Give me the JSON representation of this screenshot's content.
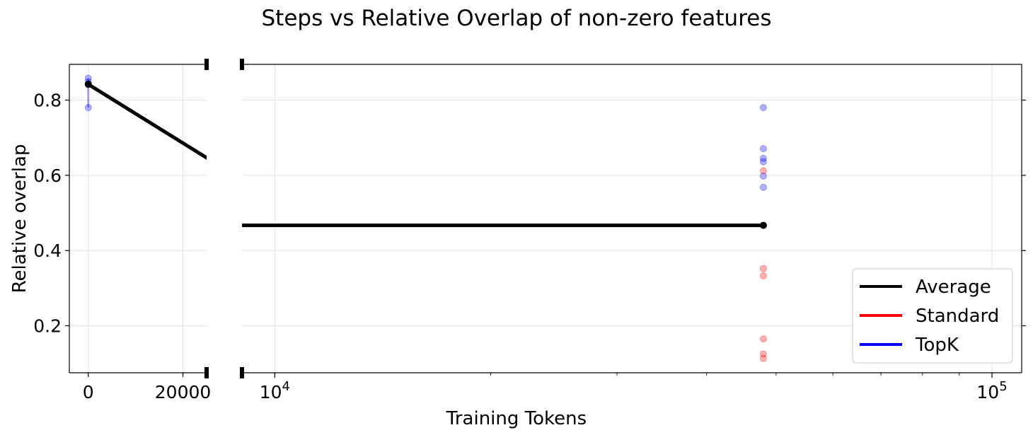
{
  "chart_data": {
    "type": "line",
    "title": "Steps vs Relative Overlap of non-zero features",
    "xlabel": "Training Tokens",
    "ylabel": "Relative overlap",
    "ylim": [
      0.075,
      0.895
    ],
    "yticks": [
      0.2,
      0.4,
      0.6,
      0.8
    ],
    "ytick_labels": [
      "0.2",
      "0.4",
      "0.6",
      "0.8"
    ],
    "broken_x_axis": true,
    "grid": true,
    "left_panel": {
      "xscale": "linear",
      "xlim": [
        -4000,
        25000
      ],
      "xticks": [
        0,
        20000
      ],
      "xtick_labels": [
        "0",
        "20000"
      ]
    },
    "right_panel": {
      "xscale": "log",
      "xlim": [
        9000,
        110000
      ],
      "xticks": [
        10000,
        100000
      ],
      "xtick_labels": [
        "10",
        "10"
      ],
      "xtick_exponents": [
        "4",
        "5"
      ]
    },
    "series": [
      {
        "name": "Average",
        "color": "#000000",
        "points": [
          [
            0,
            0.842
          ],
          [
            48000,
            0.467
          ]
        ]
      },
      {
        "name": "Standard",
        "color": "#ff0000",
        "points": [
          [
            48000,
            0.612
          ],
          [
            48000,
            0.352
          ],
          [
            48000,
            0.333
          ],
          [
            48000,
            0.165
          ],
          [
            48000,
            0.125
          ],
          [
            48000,
            0.113
          ]
        ]
      },
      {
        "name": "TopK",
        "color": "#0000ff",
        "points": [
          [
            0,
            0.858
          ],
          [
            0,
            0.848
          ],
          [
            0,
            0.78
          ],
          [
            48000,
            0.78
          ],
          [
            48000,
            0.671
          ],
          [
            48000,
            0.645
          ],
          [
            48000,
            0.636
          ],
          [
            48000,
            0.598
          ],
          [
            48000,
            0.568
          ]
        ]
      }
    ],
    "legend_position": "lower right"
  }
}
